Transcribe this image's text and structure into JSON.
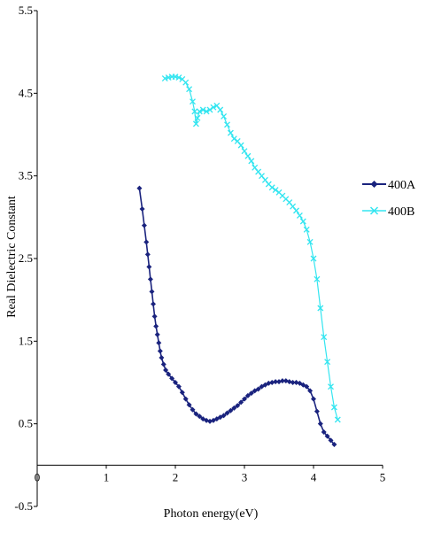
{
  "chart_data": {
    "type": "line",
    "title": "",
    "xlabel": "Photon energy(eV)",
    "ylabel": "Real Dielectric Constant",
    "xlim": [
      0,
      5
    ],
    "ylim": [
      -0.5,
      5.5
    ],
    "x_ticks": [
      "0",
      "1",
      "2",
      "3",
      "4",
      "5"
    ],
    "y_ticks": [
      "-0.5",
      "0.5",
      "1.5",
      "2.5",
      "3.5",
      "4.5",
      "5.5"
    ],
    "grid": false,
    "legend_position": "right",
    "series": [
      {
        "name": "400A",
        "color": "#1a237e",
        "marker": "diamond",
        "x": [
          1.48,
          1.52,
          1.55,
          1.58,
          1.6,
          1.62,
          1.64,
          1.66,
          1.68,
          1.7,
          1.72,
          1.74,
          1.76,
          1.78,
          1.8,
          1.83,
          1.86,
          1.9,
          1.95,
          2.0,
          2.05,
          2.1,
          2.15,
          2.2,
          2.25,
          2.3,
          2.35,
          2.4,
          2.45,
          2.5,
          2.55,
          2.6,
          2.65,
          2.7,
          2.75,
          2.8,
          2.85,
          2.9,
          2.95,
          3.0,
          3.05,
          3.1,
          3.15,
          3.2,
          3.25,
          3.3,
          3.35,
          3.4,
          3.45,
          3.5,
          3.55,
          3.6,
          3.65,
          3.7,
          3.75,
          3.8,
          3.85,
          3.9,
          3.95,
          4.0,
          4.05,
          4.1,
          4.15,
          4.2,
          4.25,
          4.3
        ],
        "y": [
          3.35,
          3.1,
          2.9,
          2.7,
          2.55,
          2.4,
          2.25,
          2.1,
          1.95,
          1.8,
          1.68,
          1.58,
          1.48,
          1.38,
          1.3,
          1.22,
          1.15,
          1.1,
          1.05,
          1.0,
          0.95,
          0.88,
          0.8,
          0.73,
          0.67,
          0.62,
          0.59,
          0.56,
          0.54,
          0.53,
          0.54,
          0.56,
          0.58,
          0.6,
          0.63,
          0.66,
          0.69,
          0.72,
          0.76,
          0.8,
          0.84,
          0.87,
          0.9,
          0.92,
          0.95,
          0.97,
          0.99,
          1.0,
          1.01,
          1.01,
          1.02,
          1.02,
          1.01,
          1.0,
          1.0,
          0.99,
          0.97,
          0.95,
          0.9,
          0.8,
          0.65,
          0.5,
          0.4,
          0.35,
          0.3,
          0.25
        ]
      },
      {
        "name": "400B",
        "color": "#33e5f0",
        "marker": "x",
        "x": [
          1.85,
          1.9,
          1.95,
          2.0,
          2.05,
          2.1,
          2.15,
          2.2,
          2.25,
          2.28,
          2.3,
          2.32,
          2.35,
          2.4,
          2.45,
          2.5,
          2.55,
          2.6,
          2.65,
          2.7,
          2.75,
          2.8,
          2.85,
          2.9,
          2.95,
          3.0,
          3.05,
          3.1,
          3.15,
          3.2,
          3.25,
          3.3,
          3.35,
          3.4,
          3.45,
          3.5,
          3.55,
          3.6,
          3.65,
          3.7,
          3.75,
          3.8,
          3.85,
          3.9,
          3.95,
          4.0,
          4.05,
          4.1,
          4.15,
          4.2,
          4.25,
          4.3,
          4.35
        ],
        "y": [
          4.68,
          4.69,
          4.7,
          4.7,
          4.69,
          4.67,
          4.63,
          4.55,
          4.4,
          4.28,
          4.13,
          4.2,
          4.28,
          4.3,
          4.28,
          4.3,
          4.33,
          4.35,
          4.3,
          4.22,
          4.12,
          4.02,
          3.95,
          3.92,
          3.87,
          3.8,
          3.74,
          3.68,
          3.6,
          3.55,
          3.5,
          3.45,
          3.4,
          3.36,
          3.33,
          3.3,
          3.26,
          3.22,
          3.18,
          3.13,
          3.08,
          3.02,
          2.95,
          2.85,
          2.7,
          2.5,
          2.25,
          1.9,
          1.55,
          1.25,
          0.95,
          0.7,
          0.55
        ]
      }
    ]
  }
}
